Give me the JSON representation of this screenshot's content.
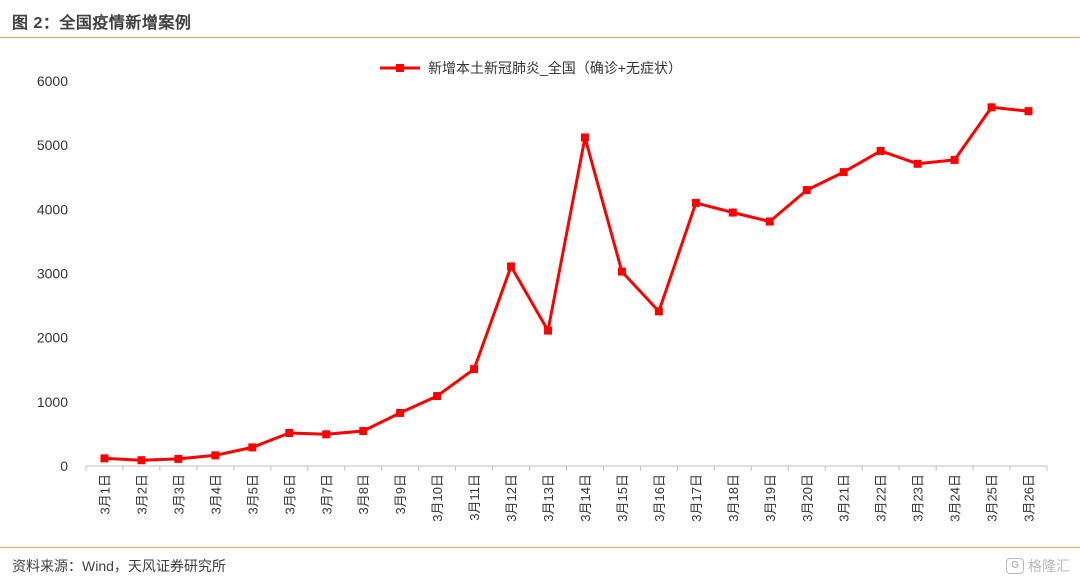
{
  "header": {
    "title": "图 2：全国疫情新增案例"
  },
  "footer": {
    "source": "资料来源：Wind，天风证券研究所"
  },
  "watermark": {
    "text": "格隆汇",
    "icon": "gelonghui-logo-icon"
  },
  "colors": {
    "series": "#ff0000",
    "axis": "#bfbfbf",
    "rule": "#e9a35a"
  },
  "chart_data": {
    "type": "line",
    "title": "",
    "xlabel": "",
    "ylabel": "",
    "ylim": [
      0,
      6000
    ],
    "yticks": [
      "0",
      "1000",
      "2000",
      "3000",
      "4000",
      "5000",
      "6000"
    ],
    "grid": false,
    "legend": "top-center",
    "categories": [
      "3月1日",
      "3月2日",
      "3月3日",
      "3月4日",
      "3月5日",
      "3月6日",
      "3月7日",
      "3月8日",
      "3月9日",
      "3月10日",
      "3月11日",
      "3月12日",
      "3月13日",
      "3月14日",
      "3月15日",
      "3月16日",
      "3月17日",
      "3月18日",
      "3月19日",
      "3月20日",
      "3月21日",
      "3月22日",
      "3月23日",
      "3月24日",
      "3月25日",
      "3月26日"
    ],
    "series": [
      {
        "name": "新增本土新冠肺炎_全国（确诊+无症状）",
        "color": "#ff0000",
        "values": [
          119,
          90,
          111,
          166,
          290,
          515,
          494,
          545,
          827,
          1090,
          1510,
          3110,
          2110,
          5120,
          3030,
          2410,
          4100,
          3950,
          3810,
          4300,
          4580,
          4910,
          4710,
          4770,
          5590,
          5530
        ]
      }
    ]
  }
}
